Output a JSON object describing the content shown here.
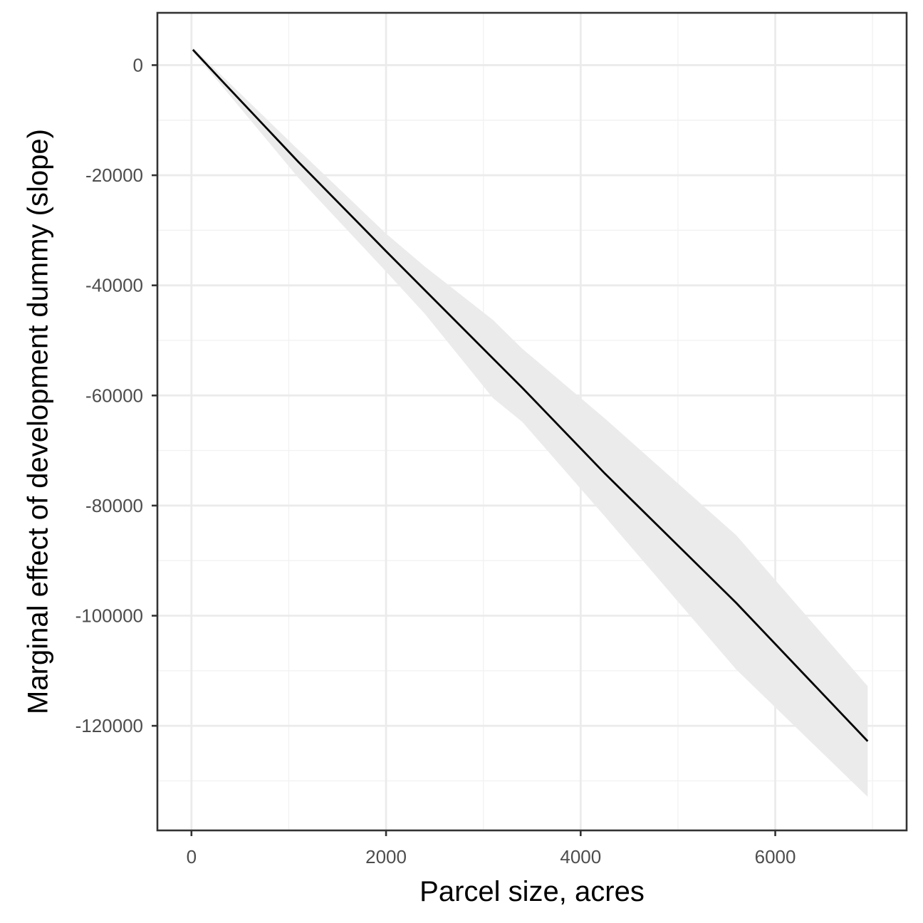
{
  "chart_data": {
    "type": "line",
    "title": "",
    "xlabel": "Parcel size, acres",
    "ylabel": "Marginal effect of development dummy (slope)",
    "xlim": [
      -350,
      7350
    ],
    "ylim": [
      -139000,
      9500
    ],
    "x_ticks": [
      0,
      2000,
      4000,
      6000
    ],
    "y_ticks": [
      0,
      -20000,
      -40000,
      -60000,
      -80000,
      -100000,
      -120000
    ],
    "x_tick_labels": [
      "0",
      "2000",
      "4000",
      "6000"
    ],
    "y_tick_labels": [
      "0",
      "-20000",
      "-40000",
      "-60000",
      "-80000",
      "-100000",
      "-120000"
    ],
    "grid": true,
    "legend": "none",
    "series": [
      {
        "x": [
          15,
          300,
          1100,
          2000,
          2400,
          3100,
          3400,
          4250,
          5600,
          6950
        ],
        "y": [
          2800,
          -2600,
          -17600,
          -33800,
          -40900,
          -53300,
          -58600,
          -74200,
          -97700,
          -122800
        ],
        "ci_lower": [
          2400,
          -3500,
          -20500,
          -37500,
          -45200,
          -60500,
          -64800,
          -82000,
          -109800,
          -132900
        ],
        "ci_upper": [
          3200,
          -1700,
          -15400,
          -30600,
          -36600,
          -46300,
          -51500,
          -64200,
          -85400,
          -112800
        ]
      }
    ],
    "colors": {
      "line": "#000000",
      "ribbon": "#ebebeb",
      "grid_major": "#ebebeb",
      "grid_minor": "#f2f2f2",
      "border": "#333333",
      "tick": "#333333",
      "tick_label": "#4d4d4d"
    }
  }
}
